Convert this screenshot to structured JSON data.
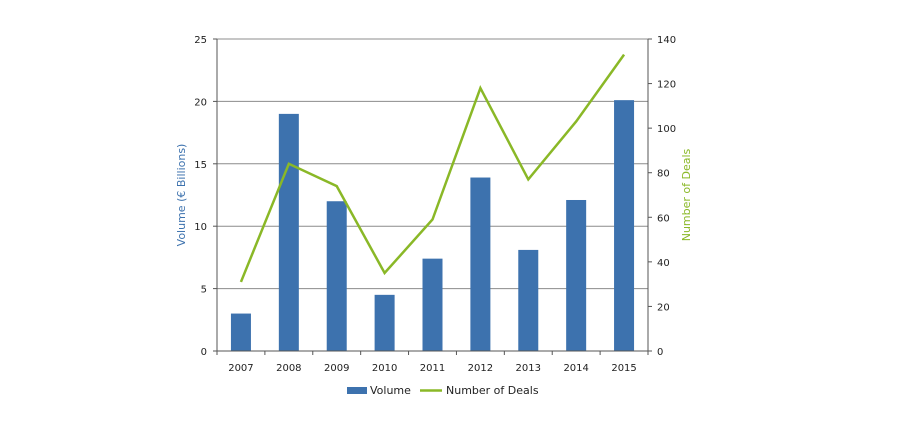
{
  "chart_data": {
    "type": "bar+line",
    "categories": [
      "2007",
      "2008",
      "2009",
      "2010",
      "2011",
      "2012",
      "2013",
      "2014",
      "2015"
    ],
    "series": [
      {
        "name": "Volume",
        "type": "bar",
        "axis": "left",
        "color": "#3d72ae",
        "values": [
          3.0,
          19.0,
          12.0,
          4.5,
          7.4,
          13.9,
          8.1,
          12.1,
          20.1
        ]
      },
      {
        "name": "Number of Deals",
        "type": "line",
        "axis": "right",
        "color": "#8ab827",
        "values": [
          31,
          84,
          74,
          35,
          59,
          118,
          77,
          103,
          133
        ]
      }
    ],
    "y_left": {
      "label": "Volume (€ Billions)",
      "min": 0,
      "max": 25,
      "ticks": [
        "0",
        "5",
        "10",
        "15",
        "20",
        "25"
      ],
      "color": "#3d72ae"
    },
    "y_right": {
      "label": "Number of Deals",
      "min": 0,
      "max": 140,
      "ticks": [
        "0",
        "20",
        "40",
        "60",
        "80",
        "100",
        "120",
        "140"
      ],
      "color": "#8ab827"
    },
    "grid": true,
    "legend": {
      "position": "bottom",
      "items": [
        "Volume",
        "Number of Deals"
      ]
    }
  }
}
